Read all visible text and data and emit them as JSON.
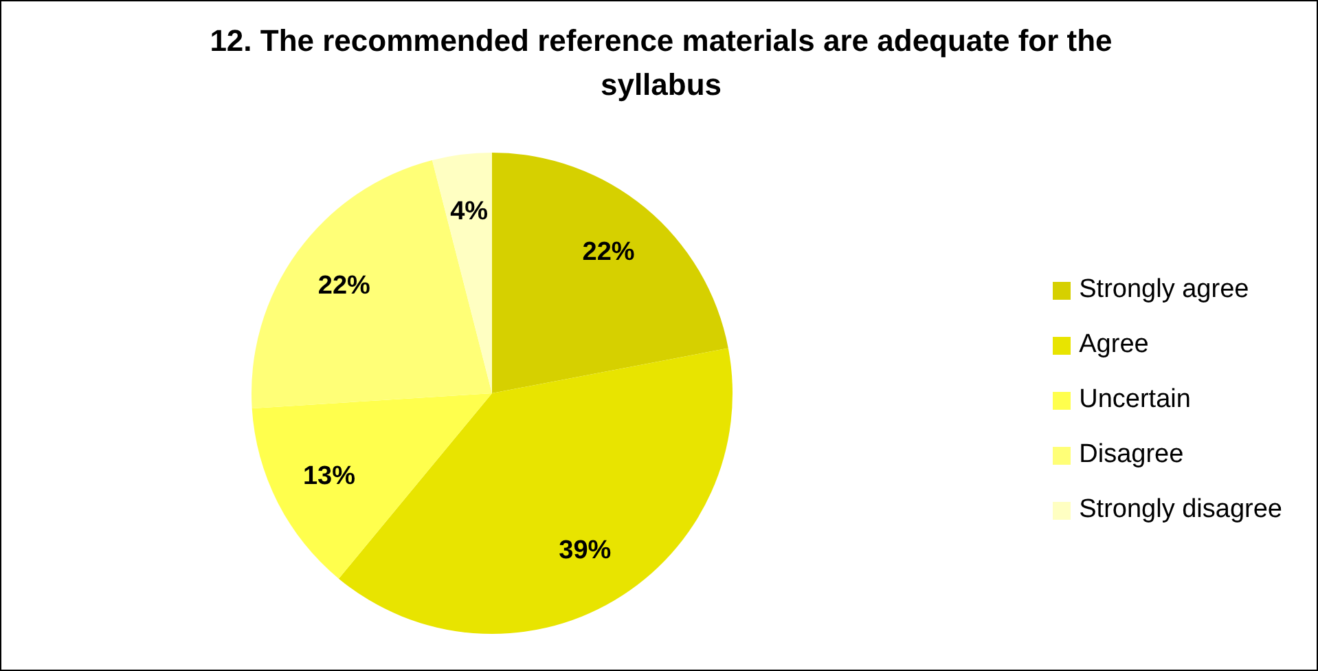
{
  "chart_data": {
    "type": "pie",
    "title": "12. The recommended reference materials are adequate for the syllabus",
    "categories": [
      "Strongly agree",
      "Agree",
      "Uncertain",
      "Disagree",
      "Strongly disagree"
    ],
    "values": [
      22,
      39,
      13,
      22,
      4
    ],
    "value_labels": [
      "22%",
      "39%",
      "13%",
      "22%",
      "4%"
    ],
    "colors": [
      "#d6d000",
      "#e8e400",
      "#ffff4d",
      "#ffff77",
      "#ffffc2"
    ],
    "legend": "right"
  }
}
